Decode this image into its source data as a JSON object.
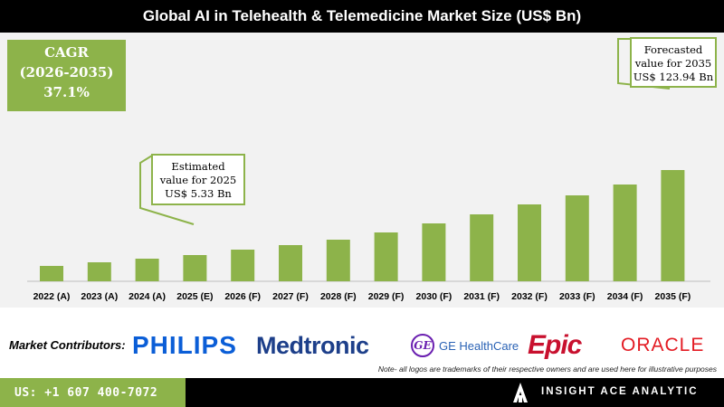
{
  "title": "Global AI in Telehealth & Telemedicine Market Size (US$ Bn)",
  "cagr": {
    "line1": "CAGR",
    "line2": "(2026-2035)",
    "line3": "37.1%"
  },
  "callouts": {
    "estimated": {
      "line1": "Estimated",
      "line2": "value for 2025",
      "line3": "US$ 5.33 Bn"
    },
    "forecasted": {
      "line1": "Forecasted",
      "line2": "value for 2035",
      "line3": "US$ 123.94 Bn"
    }
  },
  "chart_data": {
    "type": "bar",
    "title": "Global AI in Telehealth & Telemedicine Market Size (US$ Bn)",
    "categories": [
      "2022 (A)",
      "2023 (A)",
      "2024 (A)",
      "2025 (E)",
      "2026 (F)",
      "2027 (F)",
      "2028 (F)",
      "2029 (F)",
      "2030 (F)",
      "2031 (F)",
      "2032 (F)",
      "2033 (F)",
      "2034 (F)",
      "2035 (F)"
    ],
    "values": [
      2.8,
      3.4,
      4.0,
      5.33,
      6.6,
      7.7,
      8.8,
      10.2,
      12.2,
      14.3,
      16.6,
      18.8,
      21.7,
      123.94
    ],
    "bar_heights_relative": [
      0.17,
      0.21,
      0.25,
      0.29,
      0.35,
      0.4,
      0.46,
      0.54,
      0.64,
      0.74,
      0.85,
      0.95,
      1.07,
      1.23
    ],
    "color": "#8db34a",
    "axis_break": true,
    "grid": false
  },
  "contributors": {
    "label": "Market Contributors:",
    "philips": "PHILIPS",
    "medtronic": "Medtronic",
    "ge_mark": "GE",
    "ge": "GE HealthCare",
    "epic": "Epic",
    "oracle": "ORACLE"
  },
  "note": "Note- all logos are trademarks of their respective owners and are used here for illustrative purposes",
  "footer": {
    "phone": "US: +1 607 400-7072",
    "brand": "INSIGHT ACE ANALYTIC"
  }
}
